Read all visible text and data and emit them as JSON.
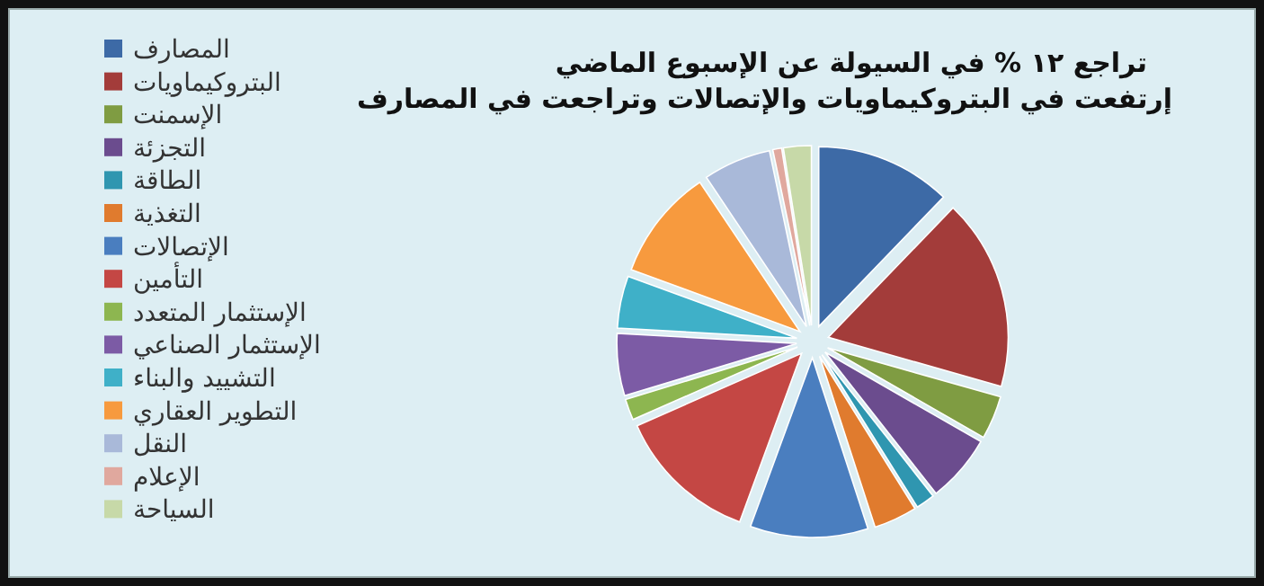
{
  "chart_data": {
    "type": "pie",
    "title": "تراجع ١٢ % في السيولة عن الإسبوع الماضي",
    "subtitle": "إرتفعت في البتروكيماويات والإتصالات وتراجعت في المصارف",
    "legend": "left",
    "categories": [
      "المصارف",
      "البتروكيماويات",
      "الإسمنت",
      "التجزئة",
      "الطاقة",
      "التغذية",
      "الإتصالات",
      "التأمين",
      "الإستثمار المتعدد",
      "الإستثمار الصناعي",
      "التشييد والبناء",
      "التطوير العقاري",
      "النقل",
      "الإعلام",
      "السياحة"
    ],
    "values": [
      12.2,
      17.2,
      3.9,
      6.1,
      1.7,
      3.9,
      10.6,
      12.8,
      1.9,
      5.6,
      4.7,
      10.0,
      6.1,
      0.8,
      2.5
    ],
    "colors": [
      "#3d6aa6",
      "#a33c3a",
      "#7f9c42",
      "#6b4c8e",
      "#2f96b0",
      "#e07b2e",
      "#4a7ebf",
      "#c44744",
      "#8db650",
      "#7c5ba5",
      "#3fb0c8",
      "#f79a3e",
      "#a9b9d9",
      "#e0a89e",
      "#c7d9a8"
    ]
  }
}
